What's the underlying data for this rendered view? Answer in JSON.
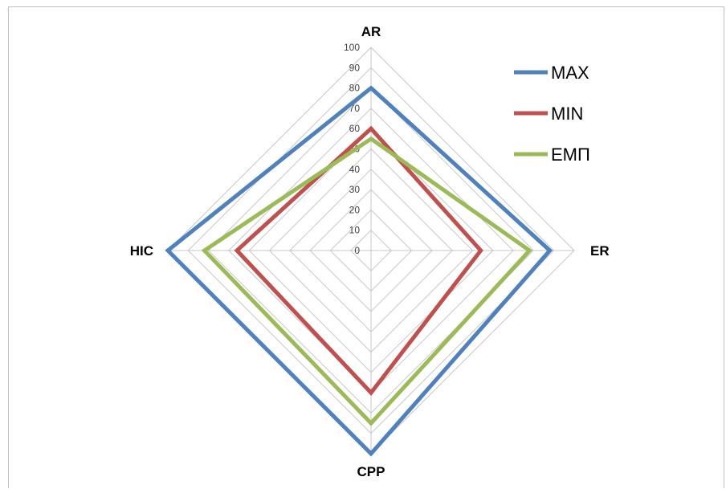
{
  "chart_data": {
    "type": "radar",
    "axes": [
      "AR",
      "ER",
      "CPP",
      "HIC"
    ],
    "r_ticks": [
      "0",
      "10",
      "20",
      "30",
      "40",
      "50",
      "60",
      "70",
      "80",
      "90",
      "100"
    ],
    "rlim": [
      0,
      100
    ],
    "grid": true,
    "legend_position": "top-right",
    "series": [
      {
        "name": "MAX",
        "color": "#4f81bd",
        "values": [
          80,
          88,
          100,
          100
        ]
      },
      {
        "name": "MIN",
        "color": "#c0504d",
        "values": [
          60,
          54,
          70,
          66
        ]
      },
      {
        "name": "EMΠ",
        "color": "#9bbb59",
        "values": [
          55,
          78,
          85,
          82
        ]
      }
    ]
  }
}
